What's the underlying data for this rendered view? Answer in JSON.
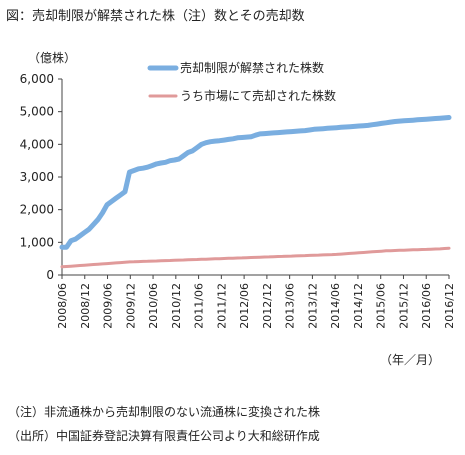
{
  "figure": {
    "title": "図：売却制限が解禁された株（注）数とその売却数",
    "note": "（注）非流通株から売却制限のない流通株に変換された株",
    "source": "（出所）中国証券登記決算有限責任公司より大和総研作成"
  },
  "chart_data": {
    "type": "line",
    "ylabel": "（億株）",
    "xlabel": "（年／月）",
    "ylim": [
      0,
      6000
    ],
    "yticks": [
      0,
      1000,
      2000,
      3000,
      4000,
      5000,
      6000
    ],
    "ytick_labels": [
      "0",
      "1,000",
      "2,000",
      "3,000",
      "4,000",
      "5,000",
      "6,000"
    ],
    "xtick_labels": [
      "2008/06",
      "2008/12",
      "2009/06",
      "2009/12",
      "2010/06",
      "2010/12",
      "2011/06",
      "2011/12",
      "2012/06",
      "2012/12",
      "2013/06",
      "2013/12",
      "2014/06",
      "2014/12",
      "2015/06",
      "2015/12",
      "2016/06",
      "2016/12"
    ],
    "legend_position": "top-center",
    "grid": false,
    "series": [
      {
        "name": "売却制限が解禁された株数",
        "color": "#7aaee0",
        "values": [
          850,
          850,
          1050,
          1100,
          1200,
          1300,
          1400,
          1550,
          1700,
          1900,
          2150,
          2250,
          2350,
          2450,
          2550,
          3150,
          3200,
          3250,
          3270,
          3300,
          3350,
          3400,
          3430,
          3450,
          3500,
          3520,
          3550,
          3650,
          3750,
          3800,
          3900,
          4000,
          4050,
          4080,
          4100,
          4110,
          4130,
          4150,
          4170,
          4200,
          4210,
          4220,
          4230,
          4280,
          4320,
          4330,
          4340,
          4350,
          4360,
          4370,
          4380,
          4390,
          4400,
          4410,
          4420,
          4440,
          4460,
          4470,
          4480,
          4490,
          4500,
          4510,
          4520,
          4530,
          4540,
          4550,
          4560,
          4570,
          4580,
          4600,
          4620,
          4640,
          4660,
          4680,
          4700,
          4710,
          4720,
          4730,
          4740,
          4750,
          4760,
          4770,
          4780,
          4790,
          4800,
          4810,
          4820
        ]
      },
      {
        "name": "うち市場にて売却された株数",
        "color": "#e09a9a",
        "values": [
          250,
          260,
          270,
          280,
          290,
          300,
          310,
          320,
          330,
          340,
          350,
          360,
          370,
          380,
          390,
          400,
          405,
          410,
          415,
          420,
          425,
          430,
          435,
          440,
          445,
          450,
          455,
          460,
          465,
          470,
          475,
          480,
          485,
          490,
          495,
          500,
          505,
          510,
          515,
          520,
          525,
          530,
          535,
          540,
          545,
          550,
          555,
          560,
          565,
          570,
          575,
          580,
          585,
          590,
          595,
          600,
          605,
          610,
          615,
          620,
          625,
          630,
          640,
          650,
          660,
          670,
          680,
          690,
          700,
          710,
          720,
          730,
          740,
          745,
          750,
          755,
          760,
          765,
          770,
          775,
          780,
          785,
          790,
          795,
          800,
          810,
          820
        ]
      }
    ]
  }
}
